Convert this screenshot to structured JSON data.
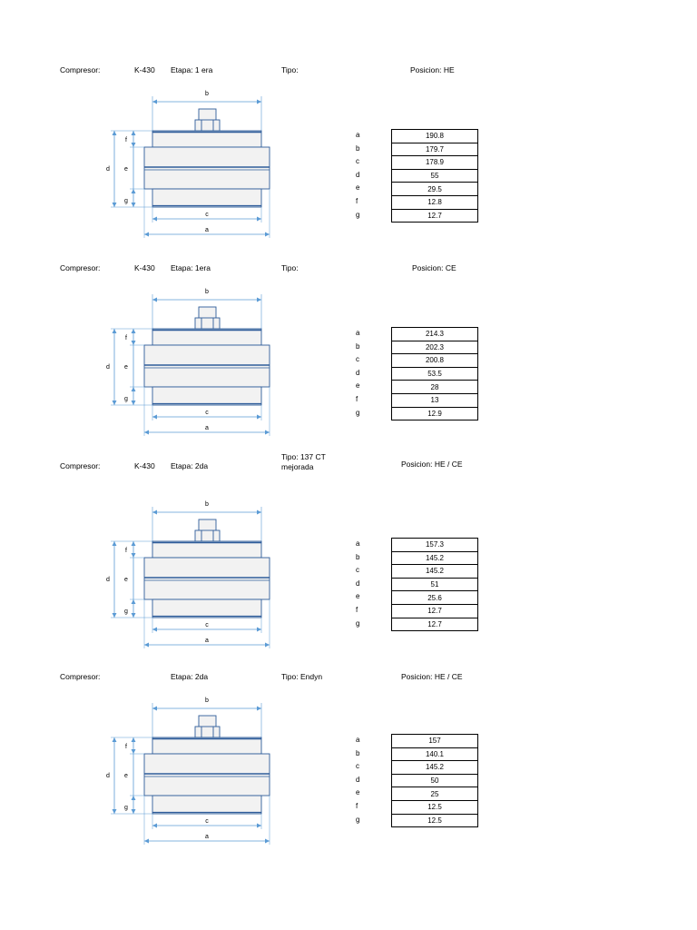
{
  "sections": [
    {
      "compresor_label": "Compresor:",
      "compresor_value": "K-430",
      "etapa": "Etapa:  1 era",
      "tipo_lines": [
        "Tipo:"
      ],
      "posicion": "Posicion:  HE",
      "dim_labels": [
        "a",
        "b",
        "c",
        "d",
        "e",
        "f",
        "g"
      ],
      "values": [
        "190.8",
        "179.7",
        "178.9",
        "55",
        "29.5",
        "12.8",
        "12.7"
      ]
    },
    {
      "compresor_label": "Compresor:",
      "compresor_value": "K-430",
      "etapa": "Etapa:  1era",
      "tipo_lines": [
        "Tipo:"
      ],
      "posicion": "Posicion: CE",
      "dim_labels": [
        "a",
        "b",
        "c",
        "d",
        "e",
        "f",
        "g"
      ],
      "values": [
        "214.3",
        "202.3",
        "200.8",
        "53.5",
        "28",
        "13",
        "12.9"
      ]
    },
    {
      "compresor_label": "Compresor:",
      "compresor_value": "K-430",
      "etapa": "Etapa:    2da",
      "tipo_lines": [
        "Tipo:   137 CT",
        "mejorada"
      ],
      "posicion": "Posicion:   HE / CE",
      "dim_labels": [
        "a",
        "b",
        "c",
        "d",
        "e",
        "f",
        "g"
      ],
      "values": [
        "157.3",
        "145.2",
        "145.2",
        "51",
        "25.6",
        "12.7",
        "12.7"
      ]
    },
    {
      "compresor_label": "Compresor:",
      "compresor_value": "",
      "etapa": "Etapa:    2da",
      "tipo_lines": [
        "Tipo:   Endyn"
      ],
      "posicion": "Posicion:   HE / CE",
      "dim_labels": [
        "a",
        "b",
        "c",
        "d",
        "e",
        "f",
        "g"
      ],
      "values": [
        "157",
        "140.1",
        "145.2",
        "50",
        "25",
        "12.5",
        "12.5"
      ]
    }
  ],
  "diagram_labels": {
    "a": "a",
    "b": "b",
    "c": "c",
    "d": "d",
    "e": "e",
    "f": "f",
    "g": "g"
  },
  "colors": {
    "line": "#2E5C9A",
    "dim": "#5B9BD5",
    "fill": "#F2F2F2"
  }
}
